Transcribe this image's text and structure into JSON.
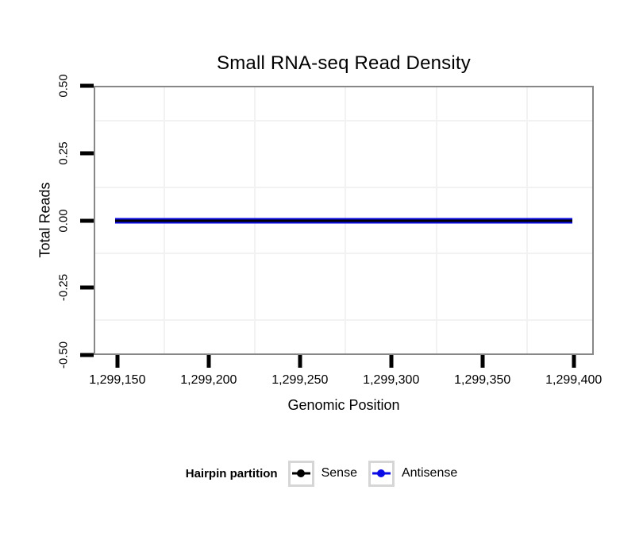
{
  "chart_data": {
    "type": "line",
    "title": "Small RNA-seq Read Density",
    "xlabel": "Genomic Position",
    "ylabel": "Total Reads",
    "xlim": [
      1299137,
      1299411
    ],
    "ylim": [
      -0.5,
      0.5
    ],
    "x_tick_values": [
      1299150,
      1299200,
      1299250,
      1299300,
      1299350,
      1299400
    ],
    "x_tick_labels": [
      "1,299,150",
      "1,299,200",
      "1,299,250",
      "1,299,300",
      "1,299,350",
      "1,299,400"
    ],
    "y_tick_values": [
      0.5,
      0.25,
      0,
      -0.25,
      -0.5
    ],
    "y_tick_labels": [
      "0.50",
      "0.25",
      "0.00",
      "-0.25",
      "-0.50"
    ],
    "grid": "minor gridlines only (midway between ticks), light grey on white panel",
    "legend": {
      "title": "Hairpin partition",
      "position": "bottom"
    },
    "series": [
      {
        "name": "Sense",
        "color": "#000000",
        "x_start": 1299148,
        "x_end": 1299400,
        "y": 0,
        "note": "flat line at zero reads"
      },
      {
        "name": "Antisense",
        "color": "#0b0be6",
        "x_start": 1299148,
        "x_end": 1299400,
        "y": 0,
        "note": "flat line at zero reads, drawn under Sense"
      }
    ],
    "colors": {
      "panel_border": "#878787",
      "tick": "#000000",
      "minor_grid": "#f2f2f2",
      "background": "#ffffff",
      "legend_key_border": "#d6d6d6"
    }
  }
}
